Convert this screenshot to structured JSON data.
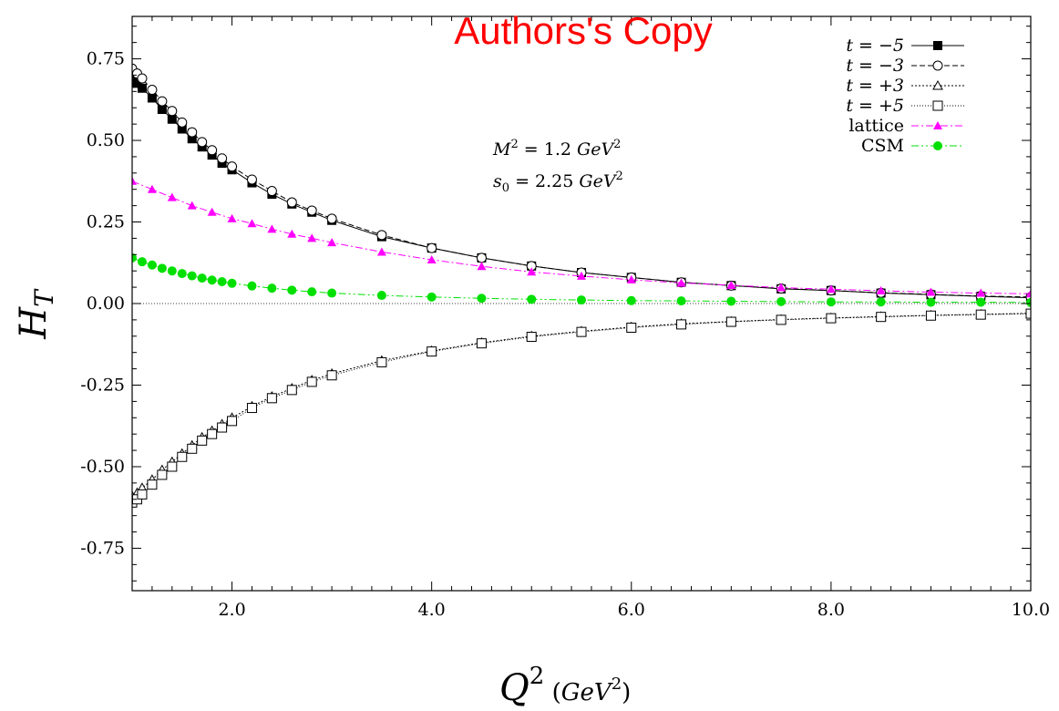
{
  "watermark": "Authors's Copy",
  "chart_data": {
    "type": "line",
    "xlabel": "Q^2 (GeV^2)",
    "ylabel": "H_T",
    "xlim": [
      1.0,
      10.0
    ],
    "ylim": [
      -0.88,
      0.88
    ],
    "x_ticks": [
      2.0,
      4.0,
      6.0,
      8.0,
      10.0
    ],
    "y_ticks": [
      -0.75,
      -0.5,
      -0.25,
      0.0,
      0.25,
      0.5,
      0.75
    ],
    "x_tick_labels": [
      "2.0",
      "4.0",
      "6.0",
      "8.0",
      "10.0"
    ],
    "y_tick_labels": [
      "-0.75",
      "-0.50",
      "-0.25",
      "0.00",
      "0.25",
      "0.50",
      "0.75"
    ],
    "annotations": [
      "M^2 = 1.2 GeV^2",
      "s_0 = 2.25 GeV^2"
    ],
    "legend_position": "top-right",
    "series": [
      {
        "name": "t = −5",
        "marker": "filled-square",
        "color": "#000000",
        "dash": "solid",
        "points": [
          [
            1.0,
            0.69
          ],
          [
            1.05,
            0.675
          ],
          [
            1.1,
            0.66
          ],
          [
            1.2,
            0.63
          ],
          [
            1.3,
            0.595
          ],
          [
            1.4,
            0.565
          ],
          [
            1.5,
            0.535
          ],
          [
            1.6,
            0.505
          ],
          [
            1.7,
            0.48
          ],
          [
            1.8,
            0.455
          ],
          [
            1.9,
            0.43
          ],
          [
            2.0,
            0.41
          ],
          [
            2.2,
            0.37
          ],
          [
            2.4,
            0.335
          ],
          [
            2.6,
            0.305
          ],
          [
            2.8,
            0.28
          ],
          [
            3.0,
            0.255
          ],
          [
            3.5,
            0.205
          ],
          [
            4.0,
            0.17
          ],
          [
            4.5,
            0.14
          ],
          [
            5.0,
            0.115
          ],
          [
            5.5,
            0.095
          ],
          [
            6.0,
            0.08
          ],
          [
            6.5,
            0.065
          ],
          [
            7.0,
            0.055
          ],
          [
            7.5,
            0.045
          ],
          [
            8.0,
            0.04
          ],
          [
            8.5,
            0.032
          ],
          [
            9.0,
            0.027
          ],
          [
            9.5,
            0.022
          ],
          [
            10.0,
            0.018
          ]
        ]
      },
      {
        "name": "t = −3",
        "marker": "open-circle",
        "color": "#000000",
        "dash": "dashed",
        "points": [
          [
            1.0,
            0.72
          ],
          [
            1.05,
            0.705
          ],
          [
            1.1,
            0.69
          ],
          [
            1.2,
            0.655
          ],
          [
            1.3,
            0.62
          ],
          [
            1.4,
            0.59
          ],
          [
            1.5,
            0.555
          ],
          [
            1.6,
            0.525
          ],
          [
            1.7,
            0.495
          ],
          [
            1.8,
            0.47
          ],
          [
            1.9,
            0.445
          ],
          [
            2.0,
            0.42
          ],
          [
            2.2,
            0.38
          ],
          [
            2.4,
            0.345
          ],
          [
            2.6,
            0.31
          ],
          [
            2.8,
            0.285
          ],
          [
            3.0,
            0.26
          ],
          [
            3.5,
            0.21
          ],
          [
            4.0,
            0.17
          ],
          [
            4.5,
            0.14
          ],
          [
            5.0,
            0.115
          ],
          [
            5.5,
            0.095
          ],
          [
            6.0,
            0.08
          ],
          [
            6.5,
            0.065
          ],
          [
            7.0,
            0.055
          ],
          [
            7.5,
            0.046
          ],
          [
            8.0,
            0.04
          ],
          [
            8.5,
            0.033
          ],
          [
            9.0,
            0.028
          ],
          [
            9.5,
            0.023
          ],
          [
            10.0,
            0.02
          ]
        ]
      },
      {
        "name": "t = +3",
        "marker": "open-triangle",
        "color": "#000000",
        "dash": "dotted",
        "points": [
          [
            1.0,
            -0.59
          ],
          [
            1.05,
            -0.58
          ],
          [
            1.1,
            -0.565
          ],
          [
            1.2,
            -0.54
          ],
          [
            1.3,
            -0.51
          ],
          [
            1.4,
            -0.485
          ],
          [
            1.5,
            -0.46
          ],
          [
            1.6,
            -0.435
          ],
          [
            1.7,
            -0.41
          ],
          [
            1.8,
            -0.39
          ],
          [
            1.9,
            -0.37
          ],
          [
            2.0,
            -0.35
          ],
          [
            2.2,
            -0.315
          ],
          [
            2.4,
            -0.285
          ],
          [
            2.6,
            -0.26
          ],
          [
            2.8,
            -0.235
          ],
          [
            3.0,
            -0.215
          ],
          [
            3.5,
            -0.175
          ],
          [
            4.0,
            -0.145
          ],
          [
            4.5,
            -0.12
          ],
          [
            5.0,
            -0.1
          ],
          [
            5.5,
            -0.085
          ],
          [
            6.0,
            -0.072
          ],
          [
            6.5,
            -0.062
          ],
          [
            7.0,
            -0.055
          ],
          [
            7.5,
            -0.049
          ],
          [
            8.0,
            -0.044
          ],
          [
            8.5,
            -0.04
          ],
          [
            9.0,
            -0.036
          ],
          [
            9.5,
            -0.033
          ],
          [
            10.0,
            -0.03
          ]
        ]
      },
      {
        "name": "t = +5",
        "marker": "open-square",
        "color": "#000000",
        "dash": "fine-dotted",
        "points": [
          [
            1.0,
            -0.61
          ],
          [
            1.05,
            -0.6
          ],
          [
            1.1,
            -0.585
          ],
          [
            1.2,
            -0.555
          ],
          [
            1.3,
            -0.525
          ],
          [
            1.4,
            -0.5
          ],
          [
            1.5,
            -0.47
          ],
          [
            1.6,
            -0.445
          ],
          [
            1.7,
            -0.42
          ],
          [
            1.8,
            -0.4
          ],
          [
            1.9,
            -0.38
          ],
          [
            2.0,
            -0.36
          ],
          [
            2.2,
            -0.32
          ],
          [
            2.4,
            -0.29
          ],
          [
            2.6,
            -0.265
          ],
          [
            2.8,
            -0.24
          ],
          [
            3.0,
            -0.22
          ],
          [
            3.5,
            -0.18
          ],
          [
            4.0,
            -0.147
          ],
          [
            4.5,
            -0.122
          ],
          [
            5.0,
            -0.102
          ],
          [
            5.5,
            -0.087
          ],
          [
            6.0,
            -0.074
          ],
          [
            6.5,
            -0.064
          ],
          [
            7.0,
            -0.056
          ],
          [
            7.5,
            -0.05
          ],
          [
            8.0,
            -0.045
          ],
          [
            8.5,
            -0.041
          ],
          [
            9.0,
            -0.037
          ],
          [
            9.5,
            -0.034
          ],
          [
            10.0,
            -0.031
          ]
        ]
      },
      {
        "name": "lattice",
        "marker": "filled-triangle",
        "color": "#ff00ff",
        "dash": "dash-dot",
        "points": [
          [
            1.0,
            0.375
          ],
          [
            1.2,
            0.35
          ],
          [
            1.4,
            0.325
          ],
          [
            1.6,
            0.3
          ],
          [
            1.8,
            0.28
          ],
          [
            2.0,
            0.26
          ],
          [
            2.2,
            0.245
          ],
          [
            2.4,
            0.228
          ],
          [
            2.6,
            0.213
          ],
          [
            2.8,
            0.2
          ],
          [
            3.0,
            0.187
          ],
          [
            3.5,
            0.158
          ],
          [
            4.0,
            0.134
          ],
          [
            4.5,
            0.114
          ],
          [
            5.0,
            0.097
          ],
          [
            5.5,
            0.084
          ],
          [
            6.0,
            0.073
          ],
          [
            6.5,
            0.063
          ],
          [
            7.0,
            0.056
          ],
          [
            7.5,
            0.049
          ],
          [
            8.0,
            0.044
          ],
          [
            8.5,
            0.039
          ],
          [
            9.0,
            0.035
          ],
          [
            9.5,
            0.032
          ],
          [
            10.0,
            0.03
          ]
        ]
      },
      {
        "name": "CSM",
        "marker": "filled-circle",
        "color": "#00e000",
        "dash": "dash-dot-dot",
        "points": [
          [
            1.0,
            0.14
          ],
          [
            1.1,
            0.128
          ],
          [
            1.2,
            0.118
          ],
          [
            1.3,
            0.108
          ],
          [
            1.4,
            0.1
          ],
          [
            1.5,
            0.092
          ],
          [
            1.6,
            0.085
          ],
          [
            1.7,
            0.078
          ],
          [
            1.8,
            0.072
          ],
          [
            1.9,
            0.067
          ],
          [
            2.0,
            0.062
          ],
          [
            2.2,
            0.054
          ],
          [
            2.4,
            0.047
          ],
          [
            2.6,
            0.041
          ],
          [
            2.8,
            0.036
          ],
          [
            3.0,
            0.032
          ],
          [
            3.5,
            0.025
          ],
          [
            4.0,
            0.02
          ],
          [
            4.5,
            0.016
          ],
          [
            5.0,
            0.013
          ],
          [
            5.5,
            0.011
          ],
          [
            6.0,
            0.009
          ],
          [
            6.5,
            0.008
          ],
          [
            7.0,
            0.007
          ],
          [
            7.5,
            0.006
          ],
          [
            8.0,
            0.005
          ],
          [
            8.5,
            0.005
          ],
          [
            9.0,
            0.004
          ],
          [
            9.5,
            0.004
          ],
          [
            10.0,
            0.003
          ]
        ]
      }
    ]
  }
}
